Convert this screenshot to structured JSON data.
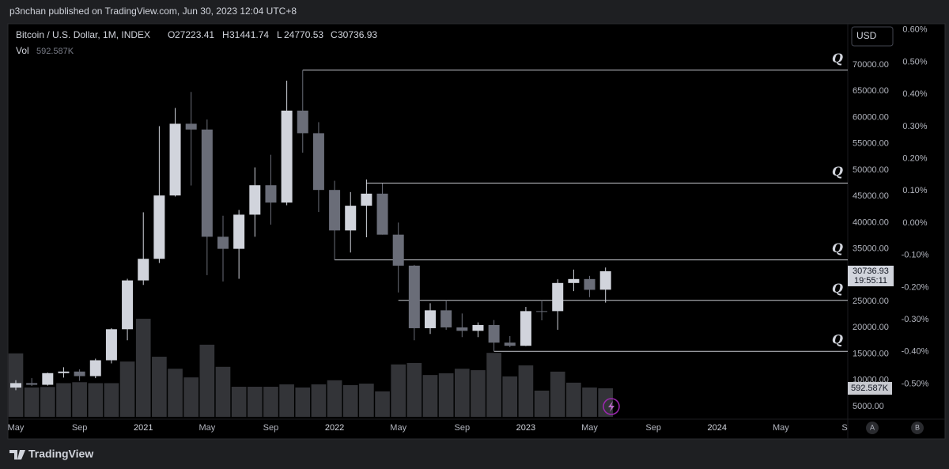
{
  "header": {
    "published": "p3nchan published on TradingView.com, Jun 30, 2023 12:04 UTC+8"
  },
  "footer": {
    "brand": "TradingView"
  },
  "chart_data": {
    "type": "candlestick",
    "title": "Bitcoin / U.S. Dollar, 1M, INDEX",
    "ohlc_prefixes": [
      "O",
      "H",
      "L",
      "C"
    ],
    "volume_title": "Vol",
    "currency": "USD",
    "countdown": "19:55:11",
    "axis_buttons": [
      "A",
      "B"
    ],
    "x": [
      "2020-05",
      "2020-06",
      "2020-07",
      "2020-08",
      "2020-09",
      "2020-10",
      "2020-11",
      "2020-12",
      "2021-01",
      "2021-02",
      "2021-03",
      "2021-04",
      "2021-05",
      "2021-06",
      "2021-07",
      "2021-08",
      "2021-09",
      "2021-10",
      "2021-11",
      "2021-12",
      "2022-01",
      "2022-02",
      "2022-03",
      "2022-04",
      "2022-05",
      "2022-06",
      "2022-07",
      "2022-08",
      "2022-09",
      "2022-10",
      "2022-11",
      "2022-12",
      "2023-01",
      "2023-02",
      "2023-03",
      "2023-04",
      "2023-05",
      "2023-06"
    ],
    "open": [
      8600,
      9450,
      9130,
      11350,
      11650,
      10780,
      13800,
      19700,
      28990,
      33100,
      45150,
      58800,
      57700,
      37300,
      35000,
      41500,
      47100,
      43800,
      61300,
      57000,
      46200,
      38500,
      43200,
      45500,
      37700,
      31800,
      19900,
      23300,
      20050,
      19400,
      20500,
      17150,
      16550,
      23150,
      23150,
      28500,
      29250,
      27223.41
    ],
    "high": [
      10000,
      10400,
      11450,
      12470,
      12070,
      14100,
      19900,
      29300,
      41950,
      58350,
      61800,
      64850,
      59600,
      41300,
      42400,
      50500,
      52900,
      67000,
      69000,
      59100,
      47950,
      45800,
      48200,
      47450,
      40000,
      31950,
      24650,
      25200,
      22700,
      21000,
      21450,
      18400,
      23950,
      25250,
      29200,
      31050,
      29850,
      31441.74
    ],
    "low": [
      8100,
      8900,
      8970,
      10500,
      9880,
      10400,
      13200,
      17600,
      28130,
      32300,
      44950,
      47050,
      30000,
      28800,
      29300,
      37300,
      39600,
      43300,
      53300,
      42000,
      32900,
      34300,
      37200,
      37700,
      26700,
      17600,
      18800,
      19600,
      18200,
      18200,
      15500,
      16300,
      16500,
      21400,
      19600,
      26950,
      25800,
      24770.53
    ],
    "close": [
      9450,
      9130,
      11350,
      11650,
      10780,
      13800,
      19700,
      28990,
      33100,
      45150,
      58800,
      57700,
      37300,
      35000,
      41500,
      47100,
      43800,
      61300,
      57000,
      46200,
      38500,
      43200,
      45500,
      37700,
      31800,
      19900,
      23300,
      20050,
      19400,
      20500,
      17150,
      16550,
      23150,
      23140,
      28500,
      29250,
      27200,
      30736.93
    ],
    "up_color": "#d1d4dc",
    "down_color": "#6a6d78",
    "volume": [
      1320000,
      610000,
      620000,
      700000,
      720000,
      700000,
      700000,
      1150000,
      2040000,
      1250000,
      1000000,
      820000,
      1500000,
      1040000,
      625000,
      625000,
      625000,
      675000,
      610000,
      675000,
      760000,
      660000,
      690000,
      530000,
      1090000,
      1120000,
      870000,
      905000,
      1000000,
      970000,
      1330000,
      840000,
      1070000,
      545000,
      940000,
      710000,
      610000,
      592587
    ],
    "volume_labels": [
      null,
      null,
      null,
      null,
      null,
      null,
      null,
      null,
      null,
      null,
      null,
      null,
      null,
      null,
      null,
      null,
      null,
      null,
      null,
      null,
      null,
      null,
      null,
      null,
      null,
      null,
      null,
      null,
      null,
      null,
      null,
      null,
      null,
      null,
      null,
      null,
      null,
      "592.587K"
    ],
    "volume_color": "#333438",
    "vlim": [
      0,
      8180000
    ],
    "levels": [
      {
        "value": 69000,
        "start": "2021-11",
        "label": "Q"
      },
      {
        "value": 47500,
        "start": "2022-03",
        "label": "Q"
      },
      {
        "value": 32900,
        "start": "2022-01",
        "label": "Q"
      },
      {
        "value": 25200,
        "start": "2022-05",
        "label": "Q"
      },
      {
        "value": 15500,
        "start": "2022-11",
        "label": "Q"
      }
    ],
    "level_color": "#c8cad0",
    "xlim": [
      "2020-05",
      "2024-09"
    ],
    "xticks": [
      {
        "value": "2020-05",
        "label": "May"
      },
      {
        "value": "2020-09",
        "label": "Sep"
      },
      {
        "value": "2021-01",
        "label": "2021"
      },
      {
        "value": "2021-05",
        "label": "May"
      },
      {
        "value": "2021-09",
        "label": "Sep"
      },
      {
        "value": "2022-01",
        "label": "2022"
      },
      {
        "value": "2022-05",
        "label": "May"
      },
      {
        "value": "2022-09",
        "label": "Sep"
      },
      {
        "value": "2023-01",
        "label": "2023"
      },
      {
        "value": "2023-05",
        "label": "May"
      },
      {
        "value": "2023-09",
        "label": "Sep"
      },
      {
        "value": "2024-01",
        "label": "2024"
      },
      {
        "value": "2024-05",
        "label": "May"
      },
      {
        "value": "2024-09",
        "label": "S"
      }
    ],
    "ylim": [
      3040,
      77830
    ],
    "yticks": [
      {
        "value": 70000,
        "label": "70000.00"
      },
      {
        "value": 65000,
        "label": "65000.00"
      },
      {
        "value": 60000,
        "label": "60000.00"
      },
      {
        "value": 55000,
        "label": "55000.00"
      },
      {
        "value": 50000,
        "label": "50000.00"
      },
      {
        "value": 45000,
        "label": "45000.00"
      },
      {
        "value": 40000,
        "label": "40000.00"
      },
      {
        "value": 35000,
        "label": "35000.00"
      },
      {
        "value": 30000,
        "label": "30000.00"
      },
      {
        "value": 25000,
        "label": "25000.00"
      },
      {
        "value": 20000,
        "label": "20000.00"
      },
      {
        "value": 15000,
        "label": "15000.00"
      },
      {
        "value": 10000,
        "label": "10000.00"
      },
      {
        "value": 5000,
        "label": "5000.00"
      }
    ],
    "y2lim": [
      -0.602,
      0.619
    ],
    "y2ticks": [
      {
        "value": 0.6,
        "label": "0.60%"
      },
      {
        "value": 0.5,
        "label": "0.50%"
      },
      {
        "value": 0.4,
        "label": "0.40%"
      },
      {
        "value": 0.3,
        "label": "0.30%"
      },
      {
        "value": 0.2,
        "label": "0.20%"
      },
      {
        "value": 0.1,
        "label": "0.10%"
      },
      {
        "value": 0,
        "label": "0.00%"
      },
      {
        "value": -0.1,
        "label": "-0.10%"
      },
      {
        "value": -0.2,
        "label": "-0.20%"
      },
      {
        "value": -0.3,
        "label": "-0.30%"
      },
      {
        "value": -0.4,
        "label": "-0.40%"
      },
      {
        "value": -0.5,
        "label": "-0.50%"
      }
    ],
    "grid": false
  }
}
